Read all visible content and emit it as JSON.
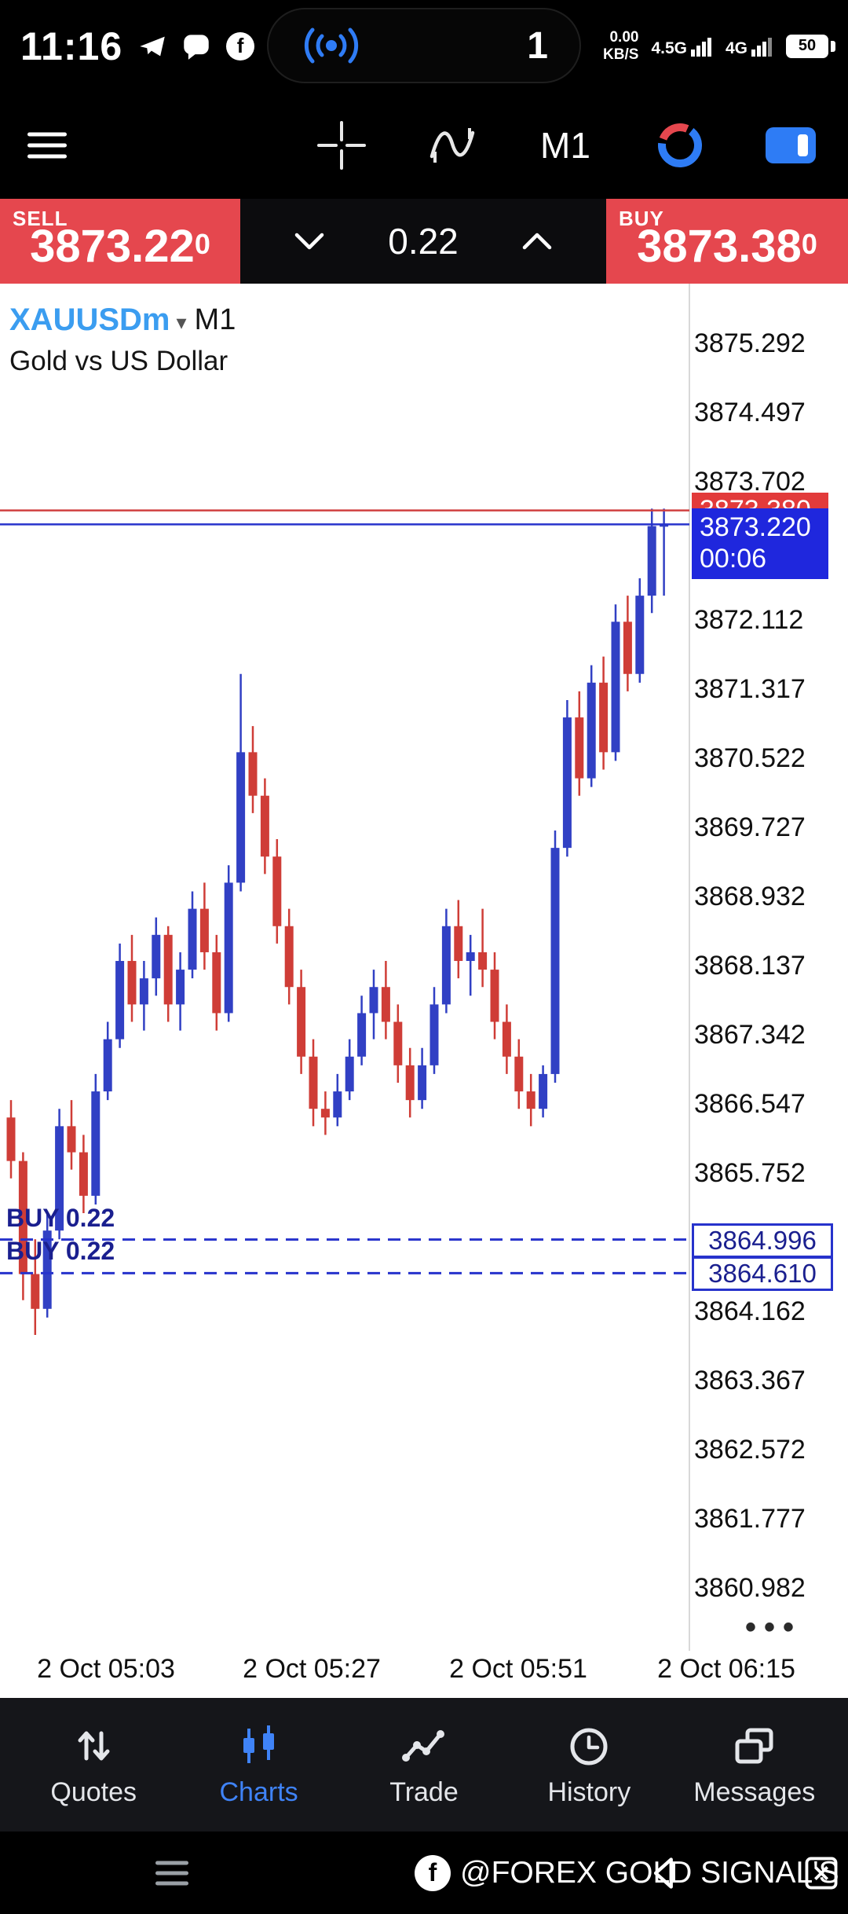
{
  "status_bar": {
    "time": "11:16",
    "recording_count": "1",
    "net_speed": "0.00",
    "net_unit": "KB/S",
    "sim1": "4.5G",
    "sim2": "4G",
    "battery": "50"
  },
  "toolbar": {
    "timeframe": "M1"
  },
  "trade_panel": {
    "sell_label": "SELL",
    "sell_price": "3873.22",
    "sell_sup": "0",
    "spread": "0.22",
    "buy_label": "BUY",
    "buy_price": "3873.38",
    "buy_sup": "0"
  },
  "chart": {
    "symbol": "XAUUSDm",
    "dropdown_arrow": "▾",
    "timeframe": "M1",
    "description": "Gold vs US Dollar",
    "ask_badge": "3873.380",
    "bid_badge": "3873.220",
    "countdown": "00:06",
    "axis_dots": "•••",
    "orders": [
      {
        "label": "BUY 0.22",
        "price": 3864.996,
        "price_label": "3864.996"
      },
      {
        "label": "BUY 0.22",
        "price": 3864.61,
        "price_label": "3864.610"
      }
    ]
  },
  "chart_data": {
    "type": "candlestick",
    "symbol": "XAUUSDm",
    "interval": "M1",
    "title": "Gold vs US Dollar",
    "ask": 3873.38,
    "bid": 3873.22,
    "up_color": "#3140c4",
    "down_color": "#cf3d37",
    "price_range": {
      "axis_top": 3875.292,
      "axis_bottom": 3860.982
    },
    "y_axis_labels": [
      "3875.292",
      "3874.497",
      "3873.702",
      "3872.112",
      "3871.317",
      "3870.522",
      "3869.727",
      "3868.932",
      "3868.137",
      "3867.342",
      "3866.547",
      "3865.752",
      "3864.162",
      "3863.367",
      "3862.572",
      "3861.777",
      "3860.982"
    ],
    "x_axis_labels": [
      "2 Oct 05:03",
      "2 Oct 05:27",
      "2 Oct 05:51",
      "2 Oct 06:15"
    ],
    "candles": [
      [
        3866.4,
        3866.6,
        3865.7,
        3865.9
      ],
      [
        3865.9,
        3866.0,
        3864.3,
        3864.6
      ],
      [
        3864.6,
        3865.0,
        3863.9,
        3864.2
      ],
      [
        3864.2,
        3865.3,
        3864.1,
        3865.1
      ],
      [
        3865.1,
        3866.5,
        3865.0,
        3866.3
      ],
      [
        3866.3,
        3866.6,
        3865.8,
        3866.0
      ],
      [
        3866.0,
        3866.2,
        3865.3,
        3865.5
      ],
      [
        3865.5,
        3866.9,
        3865.4,
        3866.7
      ],
      [
        3866.7,
        3867.5,
        3866.6,
        3867.3
      ],
      [
        3867.3,
        3868.4,
        3867.2,
        3868.2
      ],
      [
        3868.2,
        3868.5,
        3867.5,
        3867.7
      ],
      [
        3867.7,
        3868.2,
        3867.4,
        3868.0
      ],
      [
        3868.0,
        3868.7,
        3867.8,
        3868.5
      ],
      [
        3868.5,
        3868.6,
        3867.5,
        3867.7
      ],
      [
        3867.7,
        3868.3,
        3867.4,
        3868.1
      ],
      [
        3868.1,
        3869.0,
        3868.0,
        3868.8
      ],
      [
        3868.8,
        3869.1,
        3868.1,
        3868.3
      ],
      [
        3868.3,
        3868.5,
        3867.4,
        3867.6
      ],
      [
        3867.6,
        3869.3,
        3867.5,
        3869.1
      ],
      [
        3869.1,
        3871.5,
        3869.0,
        3870.6
      ],
      [
        3870.6,
        3870.9,
        3869.9,
        3870.1
      ],
      [
        3870.1,
        3870.3,
        3869.2,
        3869.4
      ],
      [
        3869.4,
        3869.6,
        3868.4,
        3868.6
      ],
      [
        3868.6,
        3868.8,
        3867.7,
        3867.9
      ],
      [
        3867.9,
        3868.1,
        3866.9,
        3867.1
      ],
      [
        3867.1,
        3867.3,
        3866.3,
        3866.5
      ],
      [
        3866.5,
        3866.7,
        3866.2,
        3866.4
      ],
      [
        3866.4,
        3866.9,
        3866.3,
        3866.7
      ],
      [
        3866.7,
        3867.3,
        3866.6,
        3867.1
      ],
      [
        3867.1,
        3867.8,
        3867.0,
        3867.6
      ],
      [
        3867.6,
        3868.1,
        3867.3,
        3867.9
      ],
      [
        3867.9,
        3868.2,
        3867.3,
        3867.5
      ],
      [
        3867.5,
        3867.7,
        3866.8,
        3867.0
      ],
      [
        3867.0,
        3867.2,
        3866.4,
        3866.6
      ],
      [
        3866.6,
        3867.2,
        3866.5,
        3867.0
      ],
      [
        3867.0,
        3867.9,
        3866.9,
        3867.7
      ],
      [
        3867.7,
        3868.8,
        3867.6,
        3868.6
      ],
      [
        3868.6,
        3868.9,
        3868.0,
        3868.2
      ],
      [
        3868.2,
        3868.5,
        3867.8,
        3868.3
      ],
      [
        3868.3,
        3868.8,
        3867.9,
        3868.1
      ],
      [
        3868.1,
        3868.3,
        3867.3,
        3867.5
      ],
      [
        3867.5,
        3867.7,
        3866.9,
        3867.1
      ],
      [
        3867.1,
        3867.3,
        3866.5,
        3866.7
      ],
      [
        3866.7,
        3866.9,
        3866.3,
        3866.5
      ],
      [
        3866.5,
        3867.0,
        3866.4,
        3866.9
      ],
      [
        3866.9,
        3869.7,
        3866.8,
        3869.5
      ],
      [
        3869.5,
        3871.2,
        3869.4,
        3871.0
      ],
      [
        3871.0,
        3871.3,
        3870.1,
        3870.3
      ],
      [
        3870.3,
        3871.6,
        3870.2,
        3871.4
      ],
      [
        3871.4,
        3871.7,
        3870.4,
        3870.6
      ],
      [
        3870.6,
        3872.3,
        3870.5,
        3872.1
      ],
      [
        3872.1,
        3872.4,
        3871.3,
        3871.5
      ],
      [
        3871.5,
        3872.6,
        3871.4,
        3872.4
      ],
      [
        3872.4,
        3873.4,
        3872.2,
        3873.2
      ],
      [
        3873.2,
        3873.4,
        3872.4,
        3873.22
      ]
    ]
  },
  "bottom_nav": {
    "items": [
      {
        "id": "quotes",
        "label": "Quotes",
        "active": false
      },
      {
        "id": "charts",
        "label": "Charts",
        "active": true
      },
      {
        "id": "trade",
        "label": "Trade",
        "active": false
      },
      {
        "id": "history",
        "label": "History",
        "active": false
      },
      {
        "id": "messages",
        "label": "Messages",
        "active": false
      }
    ]
  },
  "footer": {
    "watermark": "@FOREX GOLD SIGNAL'S",
    "fb_initial": "f"
  }
}
